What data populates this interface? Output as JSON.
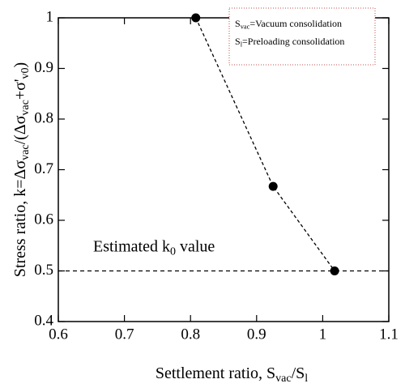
{
  "chart_data": {
    "type": "line",
    "x": [
      0.808,
      0.925,
      1.018
    ],
    "series": [
      {
        "color": "#000000",
        "values": [
          1.0,
          0.667,
          0.5
        ]
      }
    ],
    "xlim": [
      0.6,
      1.1
    ],
    "xticks": [
      0.6,
      0.7,
      0.8,
      0.9,
      1,
      1.1
    ],
    "ylim": [
      0.4,
      1.0
    ],
    "yticks": [
      0.4,
      0.5,
      0.6,
      0.7,
      0.8,
      0.9,
      1
    ],
    "xlabel": [
      "Settlement ratio, S",
      "vac",
      "/S",
      "l"
    ],
    "ylabel": [
      "Stress ratio, k=Δσ",
      "vac",
      "/(Δσ",
      "vac",
      "+σ'",
      "v0",
      ")"
    ],
    "reference_line": {
      "value": 0.5,
      "label": [
        "Estimated k",
        "0",
        " value"
      ]
    },
    "legend": [
      [
        "S",
        "vac",
        "=Vacuum consolidation"
      ],
      [
        "S",
        "l",
        "=Preloading consolidation"
      ]
    ],
    "legend_border_color": "#c0504d"
  }
}
